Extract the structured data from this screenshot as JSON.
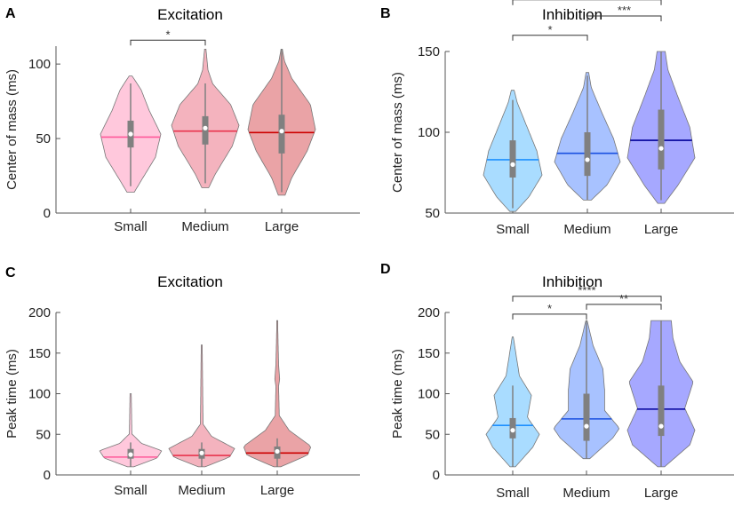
{
  "chart_data": [
    {
      "panel": "A",
      "type": "violin",
      "title": "Excitation",
      "ylabel": "Center of mass (ms)",
      "ylim": [
        0,
        112
      ],
      "yticks": [
        "0",
        "50",
        "100"
      ],
      "categories": [
        "Small",
        "Medium",
        "Large"
      ],
      "colors": {
        "fill": [
          "#ffc8dc",
          "#f4b3be",
          "#eaa3a6"
        ],
        "median": [
          "#ff5a9a",
          "#e8344e",
          "#cc0000"
        ]
      },
      "series": [
        {
          "min": 14,
          "max": 92,
          "q1": 44,
          "q3": 62,
          "median": 53,
          "mean": 51,
          "whisker_low": 18,
          "whisker_high": 87
        },
        {
          "min": 17,
          "max": 110,
          "q1": 46,
          "q3": 65,
          "median": 57,
          "mean": 55,
          "whisker_low": 20,
          "whisker_high": 87
        },
        {
          "min": 12,
          "max": 110,
          "q1": 40,
          "q3": 66,
          "median": 55,
          "mean": 54,
          "whisker_low": 14,
          "whisker_high": 110
        }
      ],
      "significance": [
        {
          "pair": [
            0,
            1
          ],
          "label": "*",
          "y": 116
        }
      ]
    },
    {
      "panel": "B",
      "type": "violin",
      "title": "Inhibition",
      "ylabel": "Center of mass (ms)",
      "ylim": [
        50,
        150
      ],
      "yticks": [
        "50",
        "100",
        "150"
      ],
      "categories": [
        "Small",
        "Medium",
        "Large"
      ],
      "colors": {
        "fill": [
          "#a9dcff",
          "#a8c2ff",
          "#a6a8ff"
        ],
        "median": [
          "#1e90ff",
          "#1a50e0",
          "#00009a"
        ]
      },
      "series": [
        {
          "min": 51,
          "max": 126,
          "q1": 72,
          "q3": 95,
          "median": 80,
          "mean": 83,
          "whisker_low": 53,
          "whisker_high": 120
        },
        {
          "min": 58,
          "max": 137,
          "q1": 73,
          "q3": 100,
          "median": 83,
          "mean": 87,
          "whisker_low": 58,
          "whisker_high": 135
        },
        {
          "min": 56,
          "max": 150,
          "q1": 77,
          "q3": 114,
          "median": 90,
          "mean": 95,
          "whisker_low": 58,
          "whisker_high": 150
        }
      ],
      "significance": [
        {
          "pair": [
            0,
            1
          ],
          "label": "*",
          "y": 160
        },
        {
          "pair": [
            1,
            2
          ],
          "label": "***",
          "y": 172
        },
        {
          "pair": [
            0,
            2
          ],
          "label": "****",
          "y": 182
        }
      ]
    },
    {
      "panel": "C",
      "type": "violin",
      "title": "Excitation",
      "ylabel": "Peak time (ms)",
      "ylim": [
        0,
        200
      ],
      "yticks": [
        "0",
        "50",
        "100",
        "150",
        "200"
      ],
      "categories": [
        "Small",
        "Medium",
        "Large"
      ],
      "colors": {
        "fill": [
          "#ffc8dc",
          "#f4b3be",
          "#eaa3a6"
        ],
        "median": [
          "#ff5a9a",
          "#e8344e",
          "#cc0000"
        ]
      },
      "series": [
        {
          "min": 10,
          "max": 100,
          "q1": 20,
          "q3": 32,
          "median": 25,
          "mean": 22,
          "whisker_low": 10,
          "whisker_high": 40
        },
        {
          "min": 10,
          "max": 160,
          "q1": 20,
          "q3": 32,
          "median": 27,
          "mean": 24,
          "whisker_low": 10,
          "whisker_high": 40
        },
        {
          "min": 10,
          "max": 190,
          "q1": 20,
          "q3": 35,
          "median": 29,
          "mean": 27,
          "whisker_low": 10,
          "whisker_high": 45
        }
      ],
      "significance": []
    },
    {
      "panel": "D",
      "type": "violin",
      "title": "Inhibition",
      "ylabel": "Peak time (ms)",
      "ylim": [
        0,
        200
      ],
      "yticks": [
        "0",
        "50",
        "100",
        "150",
        "200"
      ],
      "categories": [
        "Small",
        "Medium",
        "Large"
      ],
      "colors": {
        "fill": [
          "#a9dcff",
          "#a8c2ff",
          "#a6a8ff"
        ],
        "median": [
          "#1e90ff",
          "#1a50e0",
          "#00009a"
        ]
      },
      "series": [
        {
          "min": 10,
          "max": 170,
          "q1": 45,
          "q3": 70,
          "median": 55,
          "mean": 61,
          "whisker_low": 10,
          "whisker_high": 110
        },
        {
          "min": 20,
          "max": 190,
          "q1": 42,
          "q3": 100,
          "median": 60,
          "mean": 69,
          "whisker_low": 20,
          "whisker_high": 190
        },
        {
          "min": 10,
          "max": 190,
          "q1": 48,
          "q3": 110,
          "median": 60,
          "mean": 81,
          "whisker_low": 10,
          "whisker_high": 190
        }
      ],
      "significance": [
        {
          "pair": [
            0,
            1
          ],
          "label": "*",
          "y": 198
        },
        {
          "pair": [
            1,
            2
          ],
          "label": "**",
          "y": 210
        },
        {
          "pair": [
            0,
            2
          ],
          "label": "****",
          "y": 220
        }
      ]
    }
  ]
}
